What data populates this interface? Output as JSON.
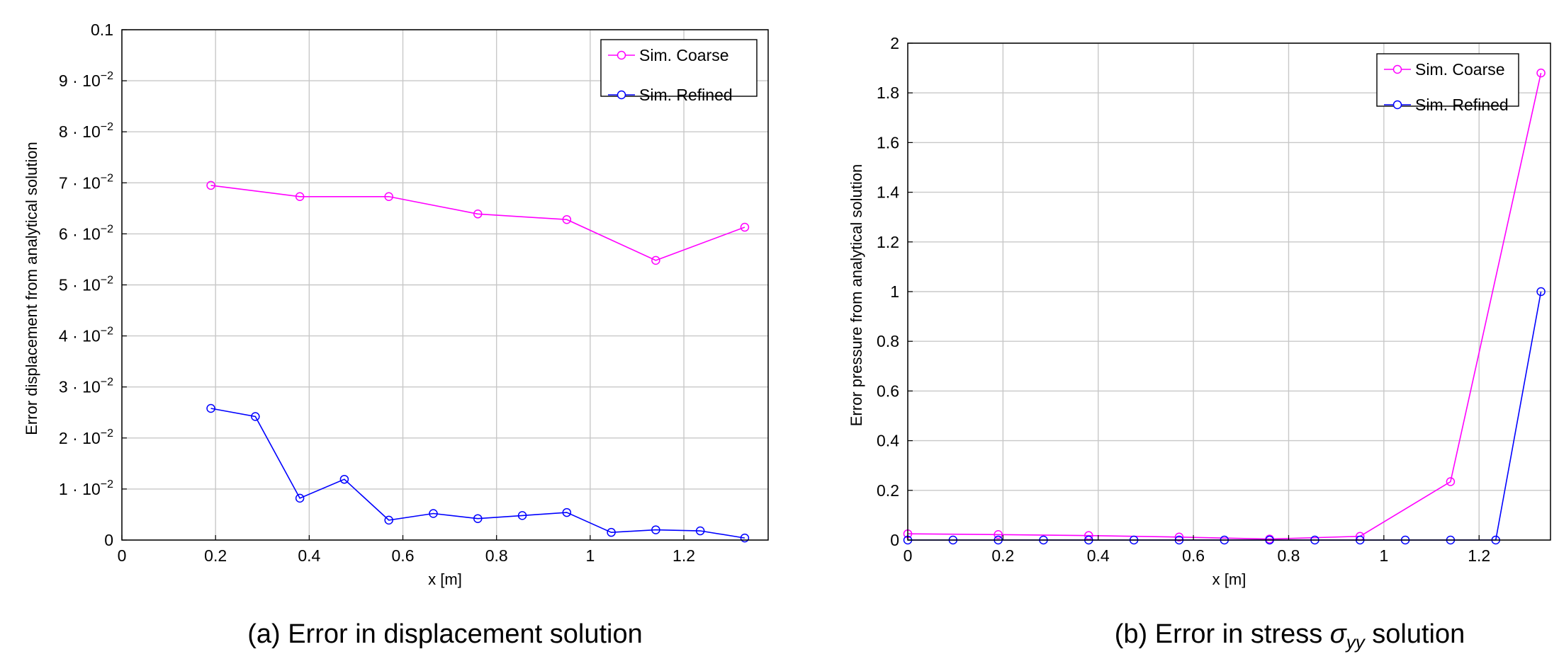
{
  "chart_data": [
    {
      "type": "line",
      "caption": "(a) Error in displacement solution",
      "xlabel": "x [m]",
      "ylabel": "Error displacement from analytical solution",
      "xlim": [
        0,
        1.38
      ],
      "ylim": [
        0,
        0.1
      ],
      "x_ticks": [
        0,
        0.2,
        0.4,
        0.6,
        0.8,
        1,
        1.2
      ],
      "x_tick_labels": [
        "0",
        "0.2",
        "0.4",
        "0.6",
        "0.8",
        "1",
        "1.2"
      ],
      "y_ticks": [
        0,
        0.01,
        0.02,
        0.03,
        0.04,
        0.05,
        0.06,
        0.07,
        0.08,
        0.09,
        0.1
      ],
      "y_tick_labels": [
        {
          "mantissa": "0",
          "exp": ""
        },
        {
          "mantissa": "1 · 10",
          "exp": "−2"
        },
        {
          "mantissa": "2 · 10",
          "exp": "−2"
        },
        {
          "mantissa": "3 · 10",
          "exp": "−2"
        },
        {
          "mantissa": "4 · 10",
          "exp": "−2"
        },
        {
          "mantissa": "5 · 10",
          "exp": "−2"
        },
        {
          "mantissa": "6 · 10",
          "exp": "−2"
        },
        {
          "mantissa": "7 · 10",
          "exp": "−2"
        },
        {
          "mantissa": "8 · 10",
          "exp": "−2"
        },
        {
          "mantissa": "9 · 10",
          "exp": "−2"
        },
        {
          "mantissa": "0.1",
          "exp": ""
        }
      ],
      "grid": true,
      "legend_position": "top-right",
      "series": [
        {
          "name": "Sim. Coarse",
          "color": "#ff00ff",
          "x": [
            0.19,
            0.38,
            0.57,
            0.76,
            0.95,
            1.14,
            1.33
          ],
          "y": [
            0.0695,
            0.0673,
            0.0673,
            0.0639,
            0.0628,
            0.0548,
            0.0613
          ]
        },
        {
          "name": "Sim. Refined",
          "color": "#0000ff",
          "x": [
            0.19,
            0.285,
            0.38,
            0.475,
            0.57,
            0.665,
            0.76,
            0.855,
            0.95,
            1.045,
            1.14,
            1.235,
            1.33
          ],
          "y": [
            0.0258,
            0.0242,
            0.0082,
            0.0119,
            0.0039,
            0.0052,
            0.0042,
            0.0048,
            0.0054,
            0.0015,
            0.002,
            0.0018,
            0.0004
          ]
        }
      ]
    },
    {
      "type": "line",
      "caption_prefix": "(b) Error in stress ",
      "caption_sigma": "σ",
      "caption_sub": "yy",
      "caption_suffix": " solution",
      "xlabel": "x [m]",
      "ylabel": "Error pressure from analytical solution",
      "xlim": [
        0,
        1.35
      ],
      "ylim": [
        0,
        2
      ],
      "x_ticks": [
        0,
        0.2,
        0.4,
        0.6,
        0.8,
        1,
        1.2
      ],
      "x_tick_labels": [
        "0",
        "0.2",
        "0.4",
        "0.6",
        "0.8",
        "1",
        "1.2"
      ],
      "y_ticks": [
        0,
        0.2,
        0.4,
        0.6,
        0.8,
        1,
        1.2,
        1.4,
        1.6,
        1.8,
        2
      ],
      "y_tick_labels": [
        "0",
        "0.2",
        "0.4",
        "0.6",
        "0.8",
        "1",
        "1.2",
        "1.4",
        "1.6",
        "1.8",
        "2"
      ],
      "grid": true,
      "legend_position": "top-right",
      "series": [
        {
          "name": "Sim. Coarse",
          "color": "#ff00ff",
          "x": [
            0,
            0.19,
            0.38,
            0.57,
            0.76,
            0.95,
            1.14,
            1.33
          ],
          "y": [
            0.025,
            0.022,
            0.018,
            0.012,
            0.004,
            0.015,
            0.235,
            1.88
          ]
        },
        {
          "name": "Sim. Refined",
          "color": "#0000ff",
          "x": [
            0,
            0.095,
            0.19,
            0.285,
            0.38,
            0.475,
            0.57,
            0.665,
            0.76,
            0.855,
            0.95,
            1.045,
            1.14,
            1.235,
            1.33
          ],
          "y": [
            0,
            0,
            0,
            0,
            0,
            0,
            0,
            0,
            0,
            0,
            0,
            0,
            0,
            0,
            1.0
          ]
        }
      ]
    }
  ]
}
